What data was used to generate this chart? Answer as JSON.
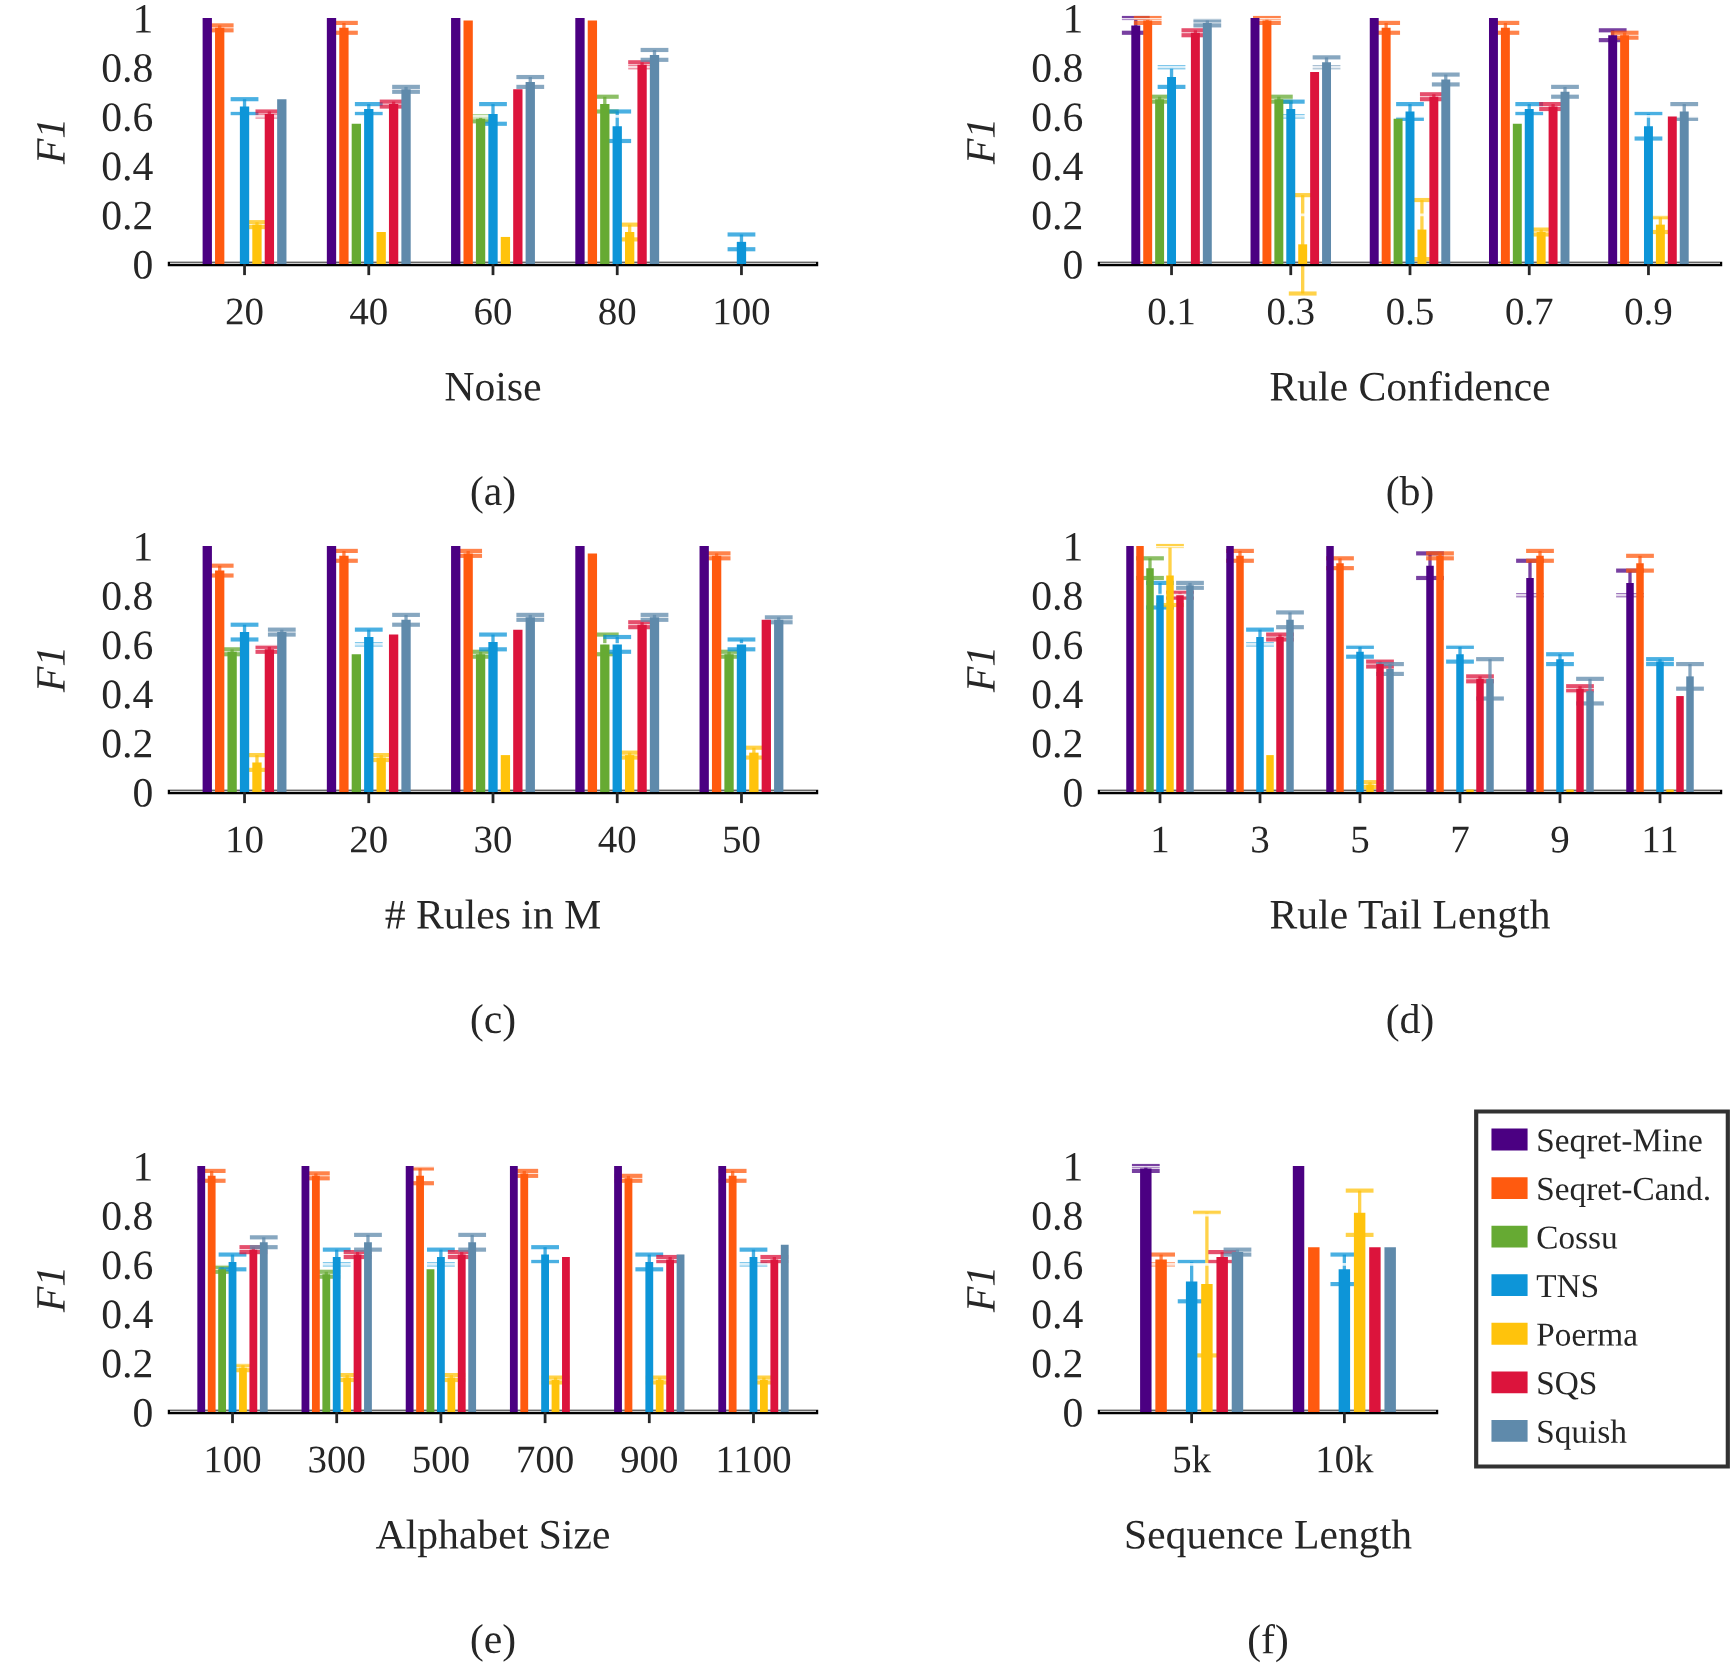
{
  "chart_data": [
    {
      "type": "bar",
      "xlabel": "Noise",
      "ylabel": "F1",
      "annotations": [
        "(a)"
      ],
      "categories": [
        "20",
        "40",
        "60",
        "80",
        "100"
      ],
      "ylim": [
        0,
        1
      ],
      "yticks": [
        0,
        0.2,
        0.4,
        0.6,
        0.8,
        1
      ],
      "grid": "y",
      "legend": false,
      "series": [
        {
          "color": "#4b0082",
          "values": [
            1.0,
            1.0,
            1.0,
            1.0,
            null
          ],
          "errors": [
            null,
            null,
            null,
            null,
            null
          ]
        },
        {
          "color": "#ff5a0f",
          "values": [
            0.96,
            0.96,
            0.99,
            0.99,
            null
          ],
          "errors": [
            0.01,
            0.02,
            null,
            null,
            null
          ]
        },
        {
          "color": "#66aa33",
          "values": [
            null,
            0.57,
            0.59,
            0.65,
            null
          ],
          "errors": [
            null,
            null,
            0.01,
            0.03,
            null
          ]
        },
        {
          "color": "#0d95d8",
          "values": [
            0.64,
            0.63,
            0.61,
            0.56,
            0.09
          ],
          "errors": [
            0.03,
            0.02,
            0.04,
            0.06,
            0.03
          ]
        },
        {
          "color": "#ffc30c",
          "values": [
            0.16,
            0.13,
            0.11,
            0.13,
            null
          ],
          "errors": [
            0.01,
            null,
            null,
            0.03,
            null
          ]
        },
        {
          "color": "#dc143c",
          "values": [
            0.61,
            0.65,
            0.71,
            0.81,
            null
          ],
          "errors": [
            0.01,
            0.01,
            null,
            0.01,
            null
          ]
        },
        {
          "color": "#5f8aab",
          "values": [
            0.67,
            0.71,
            0.74,
            0.85,
            null
          ],
          "errors": [
            null,
            0.01,
            0.02,
            0.02,
            null
          ]
        }
      ]
    },
    {
      "type": "bar",
      "xlabel": "Rule Confidence",
      "ylabel": "F1",
      "annotations": [
        "(b)"
      ],
      "categories": [
        "0.1",
        "0.3",
        "0.5",
        "0.7",
        "0.9"
      ],
      "ylim": [
        0,
        1
      ],
      "yticks": [
        0,
        0.2,
        0.4,
        0.6,
        0.8,
        1
      ],
      "grid": "y",
      "legend": false,
      "series": [
        {
          "color": "#4b0082",
          "values": [
            0.97,
            1.0,
            1.0,
            1.0,
            0.93
          ],
          "errors": [
            0.03,
            null,
            null,
            null,
            0.02
          ]
        },
        {
          "color": "#ff5a0f",
          "values": [
            0.99,
            0.99,
            0.96,
            0.96,
            0.93
          ],
          "errors": [
            0.01,
            0.01,
            0.02,
            0.02,
            0.01
          ]
        },
        {
          "color": "#66aa33",
          "values": [
            0.67,
            0.67,
            0.59,
            0.57,
            null
          ],
          "errors": [
            0.01,
            0.01,
            null,
            null,
            null
          ]
        },
        {
          "color": "#0d95d8",
          "values": [
            0.76,
            0.63,
            0.62,
            0.63,
            0.56
          ],
          "errors": [
            0.04,
            0.03,
            0.03,
            0.02,
            0.05
          ]
        },
        {
          "color": "#ffc30c",
          "values": [
            null,
            0.08,
            0.14,
            0.13,
            0.16
          ],
          "errors": [
            null,
            0.2,
            0.12,
            0.01,
            0.03
          ]
        },
        {
          "color": "#dc143c",
          "values": [
            0.94,
            0.78,
            0.68,
            0.64,
            0.6
          ],
          "errors": [
            0.01,
            null,
            0.01,
            0.01,
            null
          ]
        },
        {
          "color": "#5f8aab",
          "values": [
            0.98,
            0.82,
            0.75,
            0.7,
            0.62
          ],
          "errors": [
            0.01,
            0.02,
            0.02,
            0.02,
            0.03
          ]
        }
      ]
    },
    {
      "type": "bar",
      "xlabel": "# Rules in M",
      "ylabel": "F1",
      "annotations": [
        "(c)"
      ],
      "categories": [
        "10",
        "20",
        "30",
        "40",
        "50"
      ],
      "ylim": [
        0,
        1
      ],
      "yticks": [
        0,
        0.2,
        0.4,
        0.6,
        0.8,
        1
      ],
      "grid": "y",
      "legend": false,
      "series": [
        {
          "color": "#4b0082",
          "values": [
            1.0,
            1.0,
            1.0,
            1.0,
            1.0
          ],
          "errors": [
            null,
            null,
            null,
            null,
            null
          ]
        },
        {
          "color": "#ff5a0f",
          "values": [
            0.9,
            0.96,
            0.97,
            0.97,
            0.96
          ],
          "errors": [
            0.02,
            0.02,
            0.01,
            null,
            0.01
          ]
        },
        {
          "color": "#66aa33",
          "values": [
            0.57,
            0.56,
            0.56,
            0.6,
            0.56
          ],
          "errors": [
            0.01,
            null,
            0.01,
            0.04,
            0.01
          ]
        },
        {
          "color": "#0d95d8",
          "values": [
            0.65,
            0.63,
            0.61,
            0.6,
            0.6
          ],
          "errors": [
            0.03,
            0.03,
            0.03,
            0.03,
            0.02
          ]
        },
        {
          "color": "#ffc30c",
          "values": [
            0.12,
            0.14,
            0.15,
            0.15,
            0.16
          ],
          "errors": [
            0.03,
            0.01,
            null,
            0.01,
            0.02
          ]
        },
        {
          "color": "#dc143c",
          "values": [
            0.58,
            0.64,
            0.66,
            0.68,
            0.7
          ],
          "errors": [
            0.01,
            null,
            null,
            0.01,
            null
          ]
        },
        {
          "color": "#5f8aab",
          "values": [
            0.65,
            0.7,
            0.71,
            0.71,
            0.7
          ],
          "errors": [
            0.01,
            0.02,
            0.01,
            0.01,
            0.01
          ]
        }
      ]
    },
    {
      "type": "bar",
      "xlabel": "Rule Tail Length",
      "ylabel": "F1",
      "annotations": [
        "(d)"
      ],
      "categories": [
        "1",
        "3",
        "5",
        "7",
        "9",
        "11"
      ],
      "ylim": [
        0,
        1
      ],
      "yticks": [
        0,
        0.2,
        0.4,
        0.6,
        0.8,
        1
      ],
      "grid": "y",
      "legend": false,
      "series": [
        {
          "color": "#4b0082",
          "values": [
            1.0,
            1.0,
            1.0,
            0.92,
            0.87,
            0.85
          ],
          "errors": [
            null,
            null,
            null,
            0.05,
            0.07,
            0.05
          ]
        },
        {
          "color": "#ff5a0f",
          "values": [
            1.0,
            0.96,
            0.93,
            0.96,
            0.96,
            0.93
          ],
          "errors": [
            null,
            0.02,
            0.02,
            0.01,
            0.02,
            0.03
          ]
        },
        {
          "color": "#66aa33",
          "values": [
            0.91,
            null,
            null,
            null,
            null,
            null
          ],
          "errors": [
            0.04,
            null,
            null,
            null,
            null,
            null
          ]
        },
        {
          "color": "#0d95d8",
          "values": [
            0.8,
            0.63,
            0.57,
            0.56,
            0.54,
            0.53
          ],
          "errors": [
            0.05,
            0.03,
            0.02,
            0.03,
            0.02,
            0.01
          ]
        },
        {
          "color": "#ffc30c",
          "values": [
            0.88,
            0.15,
            0.03,
            0.01,
            0.01,
            0.01
          ],
          "errors": [
            0.12,
            null,
            0.01,
            null,
            null,
            null
          ]
        },
        {
          "color": "#dc143c",
          "values": [
            0.8,
            0.63,
            0.52,
            0.46,
            0.42,
            0.39
          ],
          "errors": [
            0.01,
            0.01,
            0.01,
            0.01,
            0.01,
            null
          ]
        },
        {
          "color": "#5f8aab",
          "values": [
            0.84,
            0.7,
            0.5,
            0.46,
            0.41,
            0.47
          ],
          "errors": [
            0.01,
            0.03,
            0.02,
            0.08,
            0.05,
            0.05
          ]
        }
      ]
    },
    {
      "type": "bar",
      "xlabel": "Alphabet Size",
      "ylabel": "F1",
      "annotations": [
        "(e)"
      ],
      "categories": [
        "100",
        "300",
        "500",
        "700",
        "900",
        "1100"
      ],
      "ylim": [
        0,
        1
      ],
      "yticks": [
        0,
        0.2,
        0.4,
        0.6,
        0.8,
        1
      ],
      "grid": "y",
      "legend": false,
      "series": [
        {
          "color": "#4b0082",
          "values": [
            1.0,
            1.0,
            1.0,
            1.0,
            1.0,
            1.0
          ],
          "errors": [
            null,
            null,
            null,
            null,
            null,
            null
          ]
        },
        {
          "color": "#ff5a0f",
          "values": [
            0.96,
            0.96,
            0.96,
            0.97,
            0.95,
            0.96
          ],
          "errors": [
            0.02,
            0.01,
            0.03,
            0.01,
            0.01,
            0.02
          ]
        },
        {
          "color": "#66aa33",
          "values": [
            0.58,
            0.56,
            0.58,
            null,
            null,
            null
          ],
          "errors": [
            0.01,
            0.01,
            null,
            null,
            null,
            null
          ]
        },
        {
          "color": "#0d95d8",
          "values": [
            0.61,
            0.63,
            0.63,
            0.64,
            0.61,
            0.63
          ],
          "errors": [
            0.03,
            0.03,
            0.03,
            0.03,
            0.03,
            0.03
          ]
        },
        {
          "color": "#ffc30c",
          "values": [
            0.18,
            0.14,
            0.14,
            0.13,
            0.13,
            0.13
          ],
          "errors": [
            0.01,
            0.01,
            0.01,
            0.01,
            0.01,
            0.01
          ]
        },
        {
          "color": "#dc143c",
          "values": [
            0.66,
            0.64,
            0.64,
            0.63,
            0.62,
            0.62
          ],
          "errors": [
            0.01,
            0.01,
            0.01,
            null,
            0.01,
            0.01
          ]
        },
        {
          "color": "#5f8aab",
          "values": [
            0.69,
            0.69,
            0.69,
            null,
            0.64,
            0.68
          ],
          "errors": [
            0.02,
            0.03,
            0.03,
            null,
            null,
            null
          ]
        }
      ]
    },
    {
      "type": "bar",
      "xlabel": "Sequence Length",
      "ylabel": "F1",
      "annotations": [
        "(f)"
      ],
      "categories": [
        "5k",
        "10k"
      ],
      "ylim": [
        0,
        1
      ],
      "yticks": [
        0,
        0.2,
        0.4,
        0.6,
        0.8,
        1
      ],
      "grid": "y",
      "legend": "right",
      "series": [
        {
          "name": "Seqret-Mine",
          "color": "#4b0082",
          "values": [
            0.99,
            1.0
          ],
          "errors": [
            0.01,
            null
          ]
        },
        {
          "name": "Seqret-Cand.",
          "color": "#ff5a0f",
          "values": [
            0.62,
            0.67
          ],
          "errors": [
            0.02,
            null
          ]
        },
        {
          "name": "Cossu",
          "color": "#66aa33",
          "values": [
            null,
            null
          ],
          "errors": [
            null,
            null
          ]
        },
        {
          "name": "TNS",
          "color": "#0d95d8",
          "values": [
            0.53,
            0.58
          ],
          "errors": [
            0.08,
            0.06
          ]
        },
        {
          "name": "Poerma",
          "color": "#ffc30c",
          "values": [
            0.52,
            0.81
          ],
          "errors": [
            0.29,
            0.09
          ]
        },
        {
          "name": "SQS",
          "color": "#dc143c",
          "values": [
            0.63,
            0.67
          ],
          "errors": [
            0.02,
            null
          ]
        },
        {
          "name": "Squish",
          "color": "#5f8aab",
          "values": [
            0.65,
            0.67
          ],
          "errors": [
            0.01,
            null
          ]
        }
      ]
    }
  ]
}
